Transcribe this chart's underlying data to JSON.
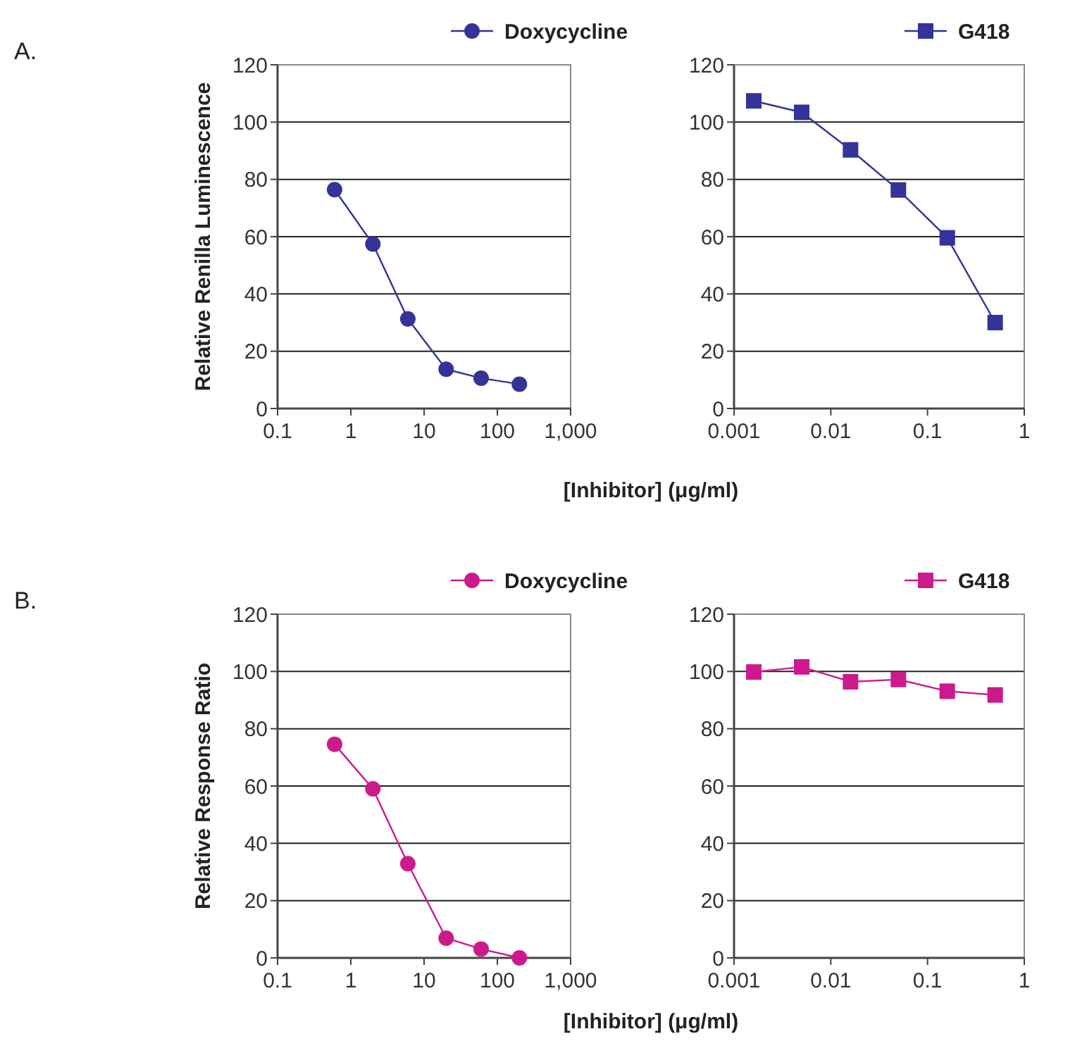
{
  "chart_data": [
    {
      "type": "line",
      "annotations": [
        "A."
      ],
      "ylabel": "Relative Renilla Luminescence",
      "xlabel": "[Inhibitor] (μg/ml)",
      "log": "x",
      "x": [
        0.6,
        2,
        6,
        20,
        60,
        200
      ],
      "xlim": [
        0.1,
        1000
      ],
      "xticks": [
        0.1,
        1,
        10,
        100,
        {
          "value": 1000,
          "label": "1,000"
        }
      ],
      "ylim": [
        0,
        120
      ],
      "yticks": [
        0,
        20,
        40,
        60,
        80,
        100,
        120
      ],
      "grid": "y",
      "legend": "top right",
      "marker": "circle",
      "series": [
        {
          "name": "Doxycycline",
          "color": "#333399",
          "values": [
            76.4,
            57.4,
            31.3,
            13.7,
            10.6,
            8.5
          ]
        }
      ]
    },
    {
      "type": "line",
      "log": "x",
      "x": [
        0.0016,
        0.005,
        0.016,
        0.05,
        0.16,
        0.5
      ],
      "xlim": [
        0.001,
        1
      ],
      "xticks": [
        0.001,
        0.01,
        0.1,
        1
      ],
      "ylim": [
        0,
        120
      ],
      "yticks": [
        0,
        20,
        40,
        60,
        80,
        100,
        120
      ],
      "grid": "y",
      "legend": "top right",
      "marker": "square",
      "series": [
        {
          "name": "G418",
          "color": "#333399",
          "values": [
            107.4,
            103.4,
            90.3,
            76.3,
            59.6,
            30
          ]
        }
      ]
    },
    {
      "type": "line",
      "annotations": [
        "B."
      ],
      "ylabel": "Relative Response Ratio",
      "xlabel": "[Inhibitor] (μg/ml)",
      "log": "x",
      "x": [
        0.6,
        2,
        6,
        20,
        60,
        200
      ],
      "xlim": [
        0.1,
        1000
      ],
      "xticks": [
        0.1,
        1,
        10,
        100,
        {
          "value": 1000,
          "label": "1,000"
        }
      ],
      "ylim": [
        0,
        120
      ],
      "yticks": [
        0,
        20,
        40,
        60,
        80,
        100,
        120
      ],
      "grid": "y",
      "legend": "top right",
      "marker": "circle",
      "series": [
        {
          "name": "Doxycycline",
          "color": "#cc1a8c",
          "values": [
            74.6,
            59.0,
            32.9,
            6.9,
            3.1,
            0
          ]
        }
      ]
    },
    {
      "type": "line",
      "log": "x",
      "x": [
        0.0016,
        0.005,
        0.016,
        0.05,
        0.16,
        0.5
      ],
      "xlim": [
        0.001,
        1
      ],
      "xticks": [
        0.001,
        0.01,
        0.1,
        1
      ],
      "ylim": [
        0,
        120
      ],
      "yticks": [
        0,
        20,
        40,
        60,
        80,
        100,
        120
      ],
      "grid": "y",
      "legend": "top right",
      "marker": "square",
      "series": [
        {
          "name": "G418",
          "color": "#cc1a8c",
          "values": [
            99.8,
            101.6,
            96.4,
            97.2,
            93.1,
            91.8
          ]
        }
      ]
    }
  ]
}
